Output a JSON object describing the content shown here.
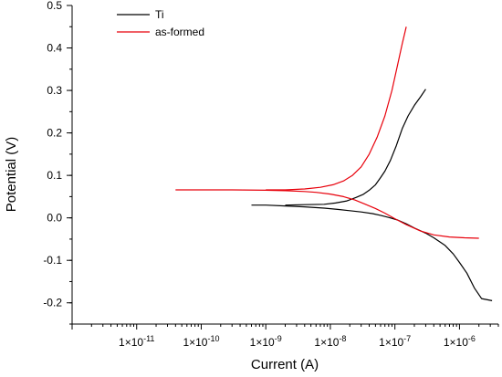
{
  "chart_data": {
    "type": "line",
    "xlabel": "Current (A)",
    "ylabel": "Potential (V)",
    "x_scale": "log",
    "xlim": [
      1e-12,
      4e-06
    ],
    "ylim": [
      -0.25,
      0.5
    ],
    "x_ticks": [
      1e-11,
      1e-10,
      1e-09,
      1e-08,
      1e-07,
      1e-06
    ],
    "x_tick_labels": [
      {
        "base": "1×10",
        "exp": "-11"
      },
      {
        "base": "1×10",
        "exp": "-10"
      },
      {
        "base": "1×10",
        "exp": "-9"
      },
      {
        "base": "1×10",
        "exp": "-8"
      },
      {
        "base": "1×10",
        "exp": "-7"
      },
      {
        "base": "1×10",
        "exp": "-6"
      }
    ],
    "y_ticks": [
      -0.2,
      -0.1,
      0.0,
      0.1,
      0.2,
      0.3,
      0.4,
      0.5
    ],
    "y_tick_labels": [
      "-0.2",
      "-0.1",
      "0.0",
      "0.1",
      "0.2",
      "0.3",
      "0.4",
      "0.5"
    ],
    "legend_position": "top-left",
    "grid": false,
    "series": [
      {
        "name": "Ti",
        "color": "#000000",
        "segments": [
          {
            "x": [
              6e-10,
              1e-09,
              2e-09,
              4e-09,
              8e-09,
              1.3e-08,
              2e-08,
              3e-08,
              4.5e-08,
              6e-08,
              8e-08,
              1.1e-07,
              1.5e-07,
              2e-07,
              3e-07,
              4e-07,
              6e-07,
              8e-07,
              1e-06,
              1.3e-06,
              1.7e-06,
              2.2e-06,
              3.2e-06
            ],
            "y": [
              0.03,
              0.03,
              0.028,
              0.026,
              0.023,
              0.02,
              0.017,
              0.014,
              0.01,
              0.006,
              0.001,
              -0.005,
              -0.014,
              -0.024,
              -0.036,
              -0.047,
              -0.065,
              -0.085,
              -0.105,
              -0.13,
              -0.165,
              -0.19,
              -0.195
            ]
          },
          {
            "x": [
              2e-09,
              4e-09,
              8e-09,
              1.2e-08,
              1.8e-08,
              2.5e-08,
              3.2e-08,
              4e-08,
              5e-08,
              6e-08,
              7e-08,
              8.5e-08,
              1.05e-07,
              1.3e-07,
              1.6e-07,
              2e-07,
              2.5e-07,
              3e-07
            ],
            "y": [
              0.03,
              0.031,
              0.032,
              0.035,
              0.04,
              0.048,
              0.055,
              0.065,
              0.078,
              0.095,
              0.11,
              0.135,
              0.17,
              0.21,
              0.24,
              0.265,
              0.285,
              0.303
            ]
          }
        ]
      },
      {
        "name": "as-formed",
        "color": "#e8000b",
        "segments": [
          {
            "x": [
              4e-11,
              1e-10,
              3e-10,
              1e-09,
              2e-09,
              4e-09,
              6e-09,
              1e-08,
              1.6e-08,
              2.4e-08,
              3.5e-08,
              5e-08,
              7e-08,
              1e-07,
              1.5e-07,
              2.5e-07,
              4e-07,
              7e-07,
              1.2e-06,
              2e-06
            ],
            "y": [
              0.066,
              0.066,
              0.066,
              0.065,
              0.064,
              0.062,
              0.06,
              0.056,
              0.05,
              0.042,
              0.032,
              0.022,
              0.011,
              -0.002,
              -0.016,
              -0.031,
              -0.04,
              -0.045,
              -0.047,
              -0.048
            ]
          },
          {
            "x": [
              1e-09,
              2e-09,
              4e-09,
              7e-09,
              1.1e-08,
              1.6e-08,
              2.2e-08,
              3e-08,
              4e-08,
              5.3e-08,
              7e-08,
              9e-08,
              1.1e-07,
              1.3e-07,
              1.5e-07
            ],
            "y": [
              0.066,
              0.066,
              0.068,
              0.072,
              0.078,
              0.087,
              0.1,
              0.12,
              0.15,
              0.19,
              0.24,
              0.3,
              0.36,
              0.41,
              0.45
            ]
          }
        ]
      }
    ]
  }
}
